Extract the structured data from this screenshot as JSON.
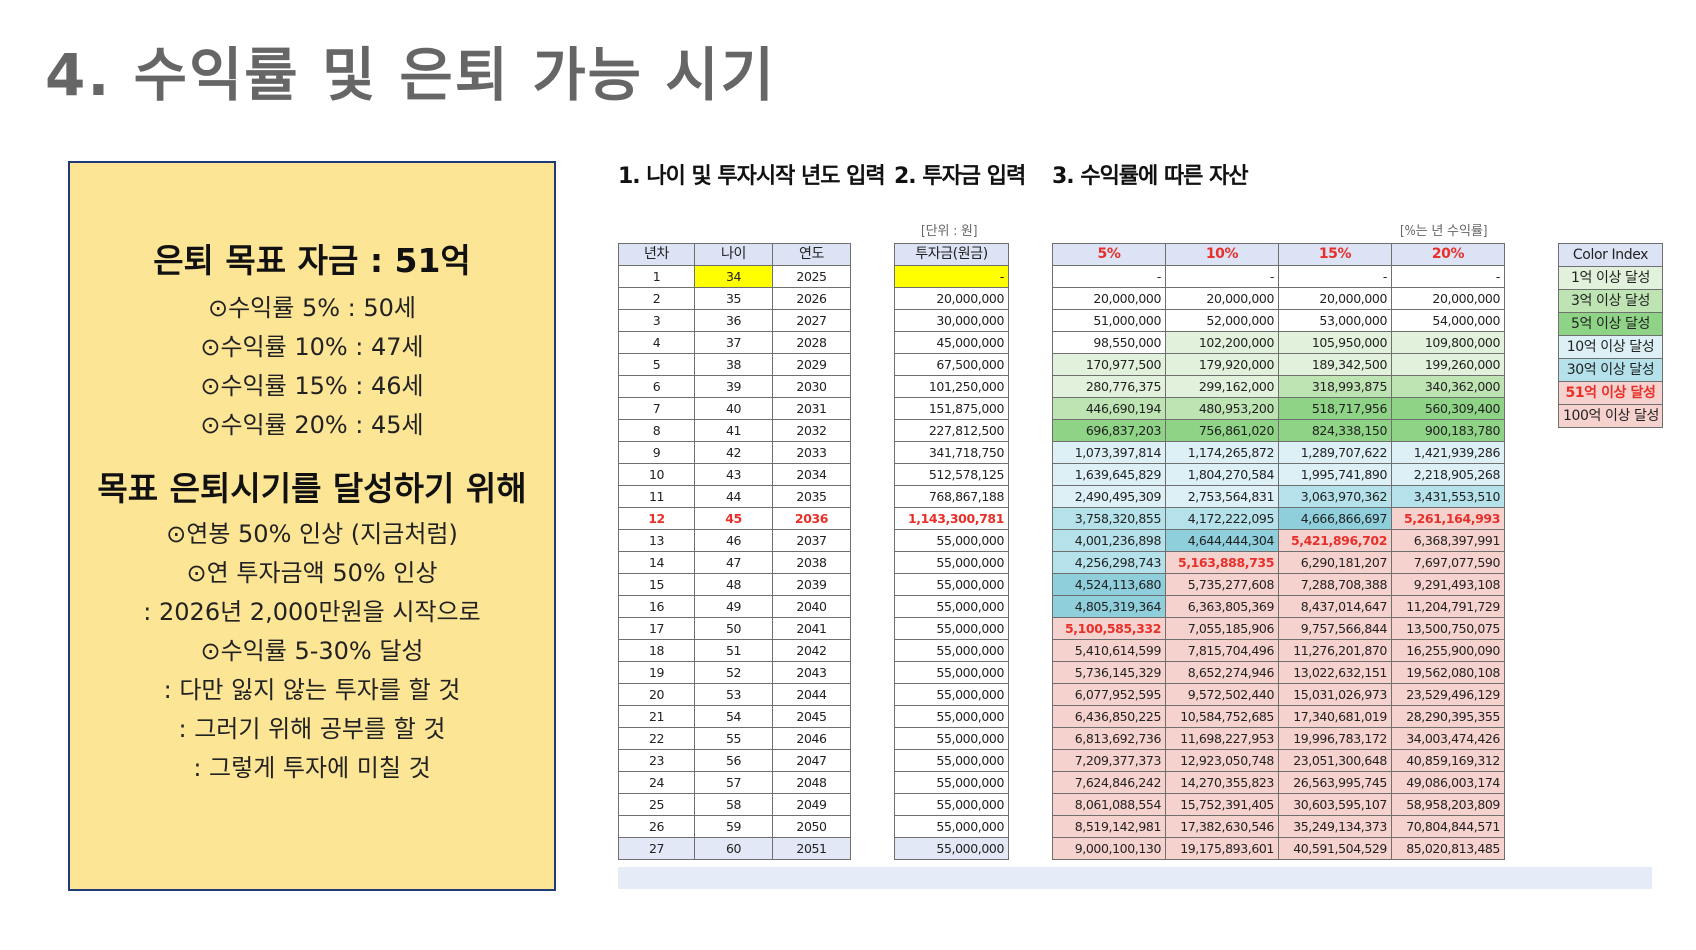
{
  "slide_title": "4. 수익률 및 은퇴 가능 시기",
  "note": {
    "heading1": "은퇴 목표 자금 : 51억",
    "goal_lines": [
      "⊙수익률 5% : 50세",
      "⊙수익률 10% : 47세",
      "⊙수익률 15% : 46세",
      "⊙수익률 20% : 45세"
    ],
    "heading2": "목표 은퇴시기를 달성하기 위해",
    "plan_lines": [
      "⊙연봉 50% 인상 (지금처럼)",
      "⊙연 투자금액 50% 인상",
      ": 2026년 2,000만원을 시작으로",
      "⊙수익률 5-30% 달성",
      ": 다만 잃지 않는 투자를 할 것",
      ": 그러기 위해 공부를 할 것",
      ": 그렇게 투자에 미칠 것"
    ]
  },
  "sections": {
    "s1": "1. 나이 및 투자시작 년도 입력",
    "s2": "2. 투자금 입력",
    "s3": "3. 수익률에 따른 자산"
  },
  "unit_label": "[단위 : 원]",
  "rate_label": "[%는 년 수익률]",
  "headers": {
    "year_no": "년차",
    "age": "나이",
    "year": "연도",
    "invest": "투자금(원금)",
    "rates": [
      "5%",
      "10%",
      "15%",
      "20%"
    ]
  },
  "rows": [
    {
      "n": "1",
      "age": "34",
      "yr": "2025",
      "inv": "-",
      "v": [
        "-",
        "-",
        "-",
        "-"
      ]
    },
    {
      "n": "2",
      "age": "35",
      "yr": "2026",
      "inv": "20,000,000",
      "v": [
        "20,000,000",
        "20,000,000",
        "20,000,000",
        "20,000,000"
      ]
    },
    {
      "n": "3",
      "age": "36",
      "yr": "2027",
      "inv": "30,000,000",
      "v": [
        "51,000,000",
        "52,000,000",
        "53,000,000",
        "54,000,000"
      ]
    },
    {
      "n": "4",
      "age": "37",
      "yr": "2028",
      "inv": "45,000,000",
      "v": [
        "98,550,000",
        "102,200,000",
        "105,950,000",
        "109,800,000"
      ]
    },
    {
      "n": "5",
      "age": "38",
      "yr": "2029",
      "inv": "67,500,000",
      "v": [
        "170,977,500",
        "179,920,000",
        "189,342,500",
        "199,260,000"
      ]
    },
    {
      "n": "6",
      "age": "39",
      "yr": "2030",
      "inv": "101,250,000",
      "v": [
        "280,776,375",
        "299,162,000",
        "318,993,875",
        "340,362,000"
      ]
    },
    {
      "n": "7",
      "age": "40",
      "yr": "2031",
      "inv": "151,875,000",
      "v": [
        "446,690,194",
        "480,953,200",
        "518,717,956",
        "560,309,400"
      ]
    },
    {
      "n": "8",
      "age": "41",
      "yr": "2032",
      "inv": "227,812,500",
      "v": [
        "696,837,203",
        "756,861,020",
        "824,338,150",
        "900,183,780"
      ]
    },
    {
      "n": "9",
      "age": "42",
      "yr": "2033",
      "inv": "341,718,750",
      "v": [
        "1,073,397,814",
        "1,174,265,872",
        "1,289,707,622",
        "1,421,939,286"
      ]
    },
    {
      "n": "10",
      "age": "43",
      "yr": "2034",
      "inv": "512,578,125",
      "v": [
        "1,639,645,829",
        "1,804,270,584",
        "1,995,741,890",
        "2,218,905,268"
      ]
    },
    {
      "n": "11",
      "age": "44",
      "yr": "2035",
      "inv": "768,867,188",
      "v": [
        "2,490,495,309",
        "2,753,564,831",
        "3,063,970,362",
        "3,431,553,510"
      ]
    },
    {
      "n": "12",
      "age": "45",
      "yr": "2036",
      "inv": "1,143,300,781",
      "v": [
        "3,758,320,855",
        "4,172,222,095",
        "4,666,866,697",
        "5,261,164,993"
      ]
    },
    {
      "n": "13",
      "age": "46",
      "yr": "2037",
      "inv": "55,000,000",
      "v": [
        "4,001,236,898",
        "4,644,444,304",
        "5,421,896,702",
        "6,368,397,991"
      ]
    },
    {
      "n": "14",
      "age": "47",
      "yr": "2038",
      "inv": "55,000,000",
      "v": [
        "4,256,298,743",
        "5,163,888,735",
        "6,290,181,207",
        "7,697,077,590"
      ]
    },
    {
      "n": "15",
      "age": "48",
      "yr": "2039",
      "inv": "55,000,000",
      "v": [
        "4,524,113,680",
        "5,735,277,608",
        "7,288,708,388",
        "9,291,493,108"
      ]
    },
    {
      "n": "16",
      "age": "49",
      "yr": "2040",
      "inv": "55,000,000",
      "v": [
        "4,805,319,364",
        "6,363,805,369",
        "8,437,014,647",
        "11,204,791,729"
      ]
    },
    {
      "n": "17",
      "age": "50",
      "yr": "2041",
      "inv": "55,000,000",
      "v": [
        "5,100,585,332",
        "7,055,185,906",
        "9,757,566,844",
        "13,500,750,075"
      ]
    },
    {
      "n": "18",
      "age": "51",
      "yr": "2042",
      "inv": "55,000,000",
      "v": [
        "5,410,614,599",
        "7,815,704,496",
        "11,276,201,870",
        "16,255,900,090"
      ]
    },
    {
      "n": "19",
      "age": "52",
      "yr": "2043",
      "inv": "55,000,000",
      "v": [
        "5,736,145,329",
        "8,652,274,946",
        "13,022,632,151",
        "19,562,080,108"
      ]
    },
    {
      "n": "20",
      "age": "53",
      "yr": "2044",
      "inv": "55,000,000",
      "v": [
        "6,077,952,595",
        "9,572,502,440",
        "15,031,026,973",
        "23,529,496,129"
      ]
    },
    {
      "n": "21",
      "age": "54",
      "yr": "2045",
      "inv": "55,000,000",
      "v": [
        "6,436,850,225",
        "10,584,752,685",
        "17,340,681,019",
        "28,290,395,355"
      ]
    },
    {
      "n": "22",
      "age": "55",
      "yr": "2046",
      "inv": "55,000,000",
      "v": [
        "6,813,692,736",
        "11,698,227,953",
        "19,996,783,172",
        "34,003,474,426"
      ]
    },
    {
      "n": "23",
      "age": "56",
      "yr": "2047",
      "inv": "55,000,000",
      "v": [
        "7,209,377,373",
        "12,923,050,748",
        "23,051,300,648",
        "40,859,169,312"
      ]
    },
    {
      "n": "24",
      "age": "57",
      "yr": "2048",
      "inv": "55,000,000",
      "v": [
        "7,624,846,242",
        "14,270,355,823",
        "26,563,995,745",
        "49,086,003,174"
      ]
    },
    {
      "n": "25",
      "age": "58",
      "yr": "2049",
      "inv": "55,000,000",
      "v": [
        "8,061,088,554",
        "15,752,391,405",
        "30,603,595,107",
        "58,958,203,809"
      ]
    },
    {
      "n": "26",
      "age": "59",
      "yr": "2050",
      "inv": "55,000,000",
      "v": [
        "8,519,142,981",
        "17,382,630,546",
        "35,249,134,373",
        "70,804,844,571"
      ]
    },
    {
      "n": "27",
      "age": "60",
      "yr": "2051",
      "inv": "55,000,000",
      "v": [
        "9,000,100,130",
        "19,175,893,601",
        "40,591,504,529",
        "85,020,813,485"
      ]
    }
  ],
  "highlight": {
    "input_year_no": "1",
    "target_year_no": "12",
    "red_cells": [
      [
        "17",
        0
      ],
      [
        "14",
        1
      ],
      [
        "13",
        2
      ],
      [
        "12",
        3
      ]
    ],
    "red_color": "#e8302a",
    "input_color": "#ffff00"
  },
  "legend": {
    "header": "Color Index",
    "items": [
      {
        "label": "1억 이상 달성",
        "color": "#e2f1dc",
        "red": false
      },
      {
        "label": "3억 이상 달성",
        "color": "#bfe4b4",
        "red": false
      },
      {
        "label": "5억 이상 달성",
        "color": "#8fd387",
        "red": false
      },
      {
        "label": "10억 이상 달성",
        "color": "#ddf0f5",
        "red": false
      },
      {
        "label": "30억 이상 달성",
        "color": "#b4e1ea",
        "red": false
      },
      {
        "label": "51억 이상 달성",
        "color": "#f6d2cf",
        "red": true
      },
      {
        "label": "100억 이상 달성",
        "color": "#f6d2cf",
        "red": false
      }
    ]
  },
  "bands": {
    "b1": {
      "min": 100000000,
      "color": "#e2f1dc"
    },
    "b3": {
      "min": 300000000,
      "color": "#bfe4b4"
    },
    "b5": {
      "min": 500000000,
      "color": "#8fd387"
    },
    "b10": {
      "min": 1000000000,
      "color": "#ddf0f5"
    },
    "b30": {
      "min": 3000000000,
      "color": "#b4e1ea"
    },
    "b45": {
      "min": 4500000000,
      "color": "#8fcfdc"
    },
    "b51": {
      "min": 5100000000,
      "color": "#f6d2cf"
    }
  }
}
